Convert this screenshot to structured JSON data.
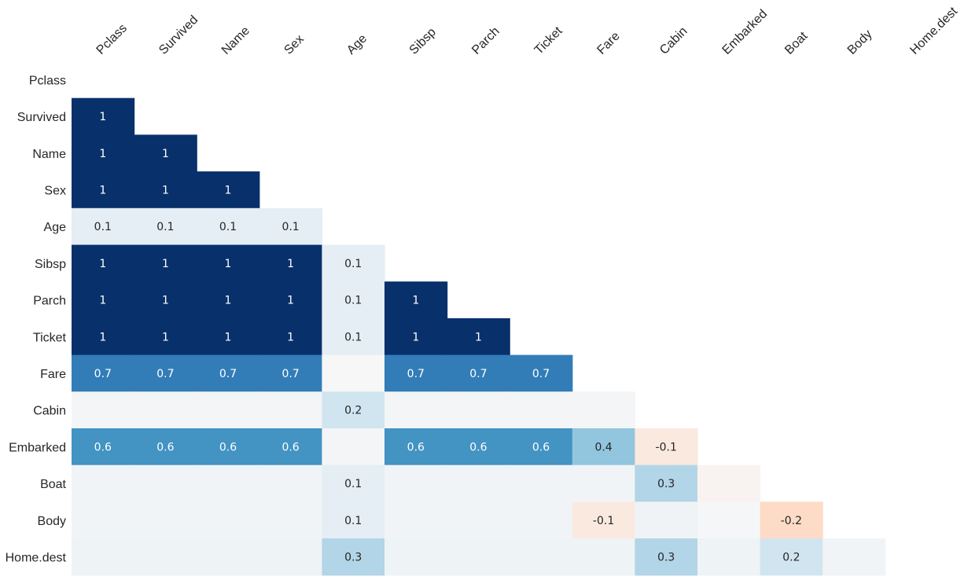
{
  "chart_data": {
    "type": "heatmap",
    "title": "",
    "xlabel": "",
    "ylabel": "",
    "variables": [
      "Pclass",
      "Survived",
      "Name",
      "Sex",
      "Age",
      "Sibsp",
      "Parch",
      "Ticket",
      "Fare",
      "Cabin",
      "Embarked",
      "Boat",
      "Body",
      "Home.dest"
    ],
    "rows": [
      {
        "label": "Pclass",
        "values": []
      },
      {
        "label": "Survived",
        "values": [
          {
            "v": 1,
            "t": "1"
          }
        ]
      },
      {
        "label": "Name",
        "values": [
          {
            "v": 1,
            "t": "1"
          },
          {
            "v": 1,
            "t": "1"
          }
        ]
      },
      {
        "label": "Sex",
        "values": [
          {
            "v": 1,
            "t": "1"
          },
          {
            "v": 1,
            "t": "1"
          },
          {
            "v": 1,
            "t": "1"
          }
        ]
      },
      {
        "label": "Age",
        "values": [
          {
            "v": 0.1,
            "t": "0.1"
          },
          {
            "v": 0.1,
            "t": "0.1"
          },
          {
            "v": 0.1,
            "t": "0.1"
          },
          {
            "v": 0.1,
            "t": "0.1"
          }
        ]
      },
      {
        "label": "Sibsp",
        "values": [
          {
            "v": 1,
            "t": "1"
          },
          {
            "v": 1,
            "t": "1"
          },
          {
            "v": 1,
            "t": "1"
          },
          {
            "v": 1,
            "t": "1"
          },
          {
            "v": 0.1,
            "t": "0.1"
          }
        ]
      },
      {
        "label": "Parch",
        "values": [
          {
            "v": 1,
            "t": "1"
          },
          {
            "v": 1,
            "t": "1"
          },
          {
            "v": 1,
            "t": "1"
          },
          {
            "v": 1,
            "t": "1"
          },
          {
            "v": 0.1,
            "t": "0.1"
          },
          {
            "v": 1,
            "t": "1"
          }
        ]
      },
      {
        "label": "Ticket",
        "values": [
          {
            "v": 1,
            "t": "1"
          },
          {
            "v": 1,
            "t": "1"
          },
          {
            "v": 1,
            "t": "1"
          },
          {
            "v": 1,
            "t": "1"
          },
          {
            "v": 0.1,
            "t": "0.1"
          },
          {
            "v": 1,
            "t": "1"
          },
          {
            "v": 1,
            "t": "1"
          }
        ]
      },
      {
        "label": "Fare",
        "values": [
          {
            "v": 0.7,
            "t": "0.7"
          },
          {
            "v": 0.7,
            "t": "0.7"
          },
          {
            "v": 0.7,
            "t": "0.7"
          },
          {
            "v": 0.7,
            "t": "0.7"
          },
          {
            "v": 0.0,
            "t": ""
          },
          {
            "v": 0.7,
            "t": "0.7"
          },
          {
            "v": 0.7,
            "t": "0.7"
          },
          {
            "v": 0.7,
            "t": "0.7"
          }
        ]
      },
      {
        "label": "Cabin",
        "values": [
          {
            "v": 0.02,
            "t": ""
          },
          {
            "v": 0.02,
            "t": ""
          },
          {
            "v": 0.02,
            "t": ""
          },
          {
            "v": 0.02,
            "t": ""
          },
          {
            "v": 0.2,
            "t": "0.2"
          },
          {
            "v": 0.02,
            "t": ""
          },
          {
            "v": 0.02,
            "t": ""
          },
          {
            "v": 0.02,
            "t": ""
          },
          {
            "v": 0.02,
            "t": ""
          }
        ]
      },
      {
        "label": "Embarked",
        "values": [
          {
            "v": 0.6,
            "t": "0.6"
          },
          {
            "v": 0.6,
            "t": "0.6"
          },
          {
            "v": 0.6,
            "t": "0.6"
          },
          {
            "v": 0.6,
            "t": "0.6"
          },
          {
            "v": 0.02,
            "t": ""
          },
          {
            "v": 0.6,
            "t": "0.6"
          },
          {
            "v": 0.6,
            "t": "0.6"
          },
          {
            "v": 0.6,
            "t": "0.6"
          },
          {
            "v": 0.4,
            "t": "0.4"
          },
          {
            "v": -0.1,
            "t": "-0.1"
          }
        ]
      },
      {
        "label": "Boat",
        "values": [
          {
            "v": 0.03,
            "t": ""
          },
          {
            "v": 0.03,
            "t": ""
          },
          {
            "v": 0.03,
            "t": ""
          },
          {
            "v": 0.03,
            "t": ""
          },
          {
            "v": 0.1,
            "t": "0.1"
          },
          {
            "v": 0.03,
            "t": ""
          },
          {
            "v": 0.03,
            "t": ""
          },
          {
            "v": 0.03,
            "t": ""
          },
          {
            "v": 0.03,
            "t": ""
          },
          {
            "v": 0.3,
            "t": "0.3"
          },
          {
            "v": -0.03,
            "t": ""
          }
        ]
      },
      {
        "label": "Body",
        "values": [
          {
            "v": 0.03,
            "t": ""
          },
          {
            "v": 0.03,
            "t": ""
          },
          {
            "v": 0.03,
            "t": ""
          },
          {
            "v": 0.03,
            "t": ""
          },
          {
            "v": 0.1,
            "t": "0.1"
          },
          {
            "v": 0.03,
            "t": ""
          },
          {
            "v": 0.03,
            "t": ""
          },
          {
            "v": 0.03,
            "t": ""
          },
          {
            "v": -0.1,
            "t": "-0.1"
          },
          {
            "v": 0.04,
            "t": ""
          },
          {
            "v": 0.01,
            "t": ""
          },
          {
            "v": -0.2,
            "t": "-0.2"
          }
        ]
      },
      {
        "label": "Home.dest",
        "values": [
          {
            "v": 0.05,
            "t": ""
          },
          {
            "v": 0.05,
            "t": ""
          },
          {
            "v": 0.05,
            "t": ""
          },
          {
            "v": 0.05,
            "t": ""
          },
          {
            "v": 0.3,
            "t": "0.3"
          },
          {
            "v": 0.05,
            "t": ""
          },
          {
            "v": 0.05,
            "t": ""
          },
          {
            "v": 0.05,
            "t": ""
          },
          {
            "v": 0.05,
            "t": ""
          },
          {
            "v": 0.3,
            "t": "0.3"
          },
          {
            "v": 0.05,
            "t": ""
          },
          {
            "v": 0.2,
            "t": "0.2"
          },
          {
            "v": 0.03,
            "t": ""
          }
        ]
      }
    ],
    "value_range": [
      -1,
      1
    ],
    "colormap": "RdBu",
    "colors": {
      "strong_positive": "#08306b",
      "zero": "#f7f7f7",
      "strong_negative": "#67001f"
    },
    "grid": false,
    "legend": "none"
  }
}
